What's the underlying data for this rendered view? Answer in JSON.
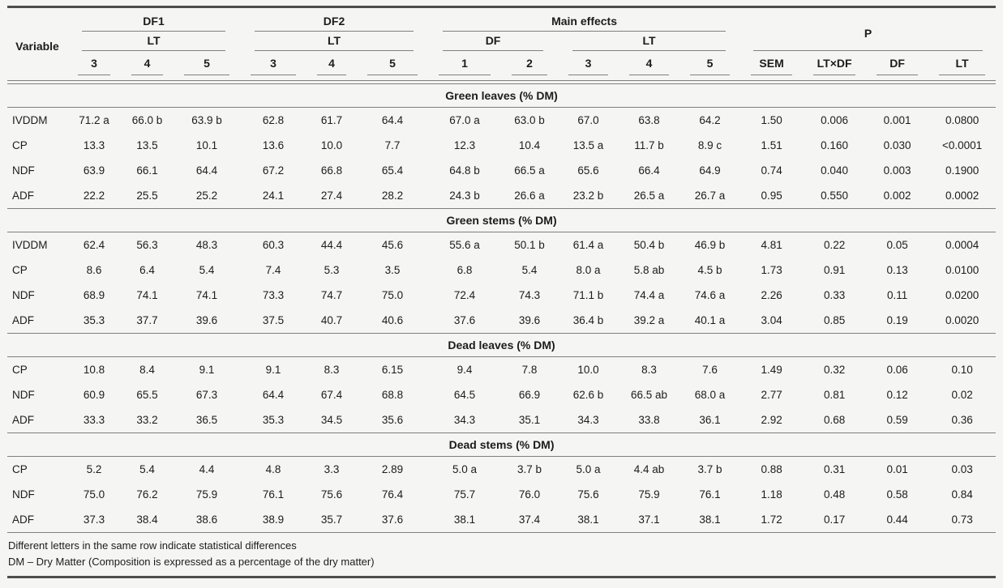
{
  "table": {
    "header": {
      "variable": "Variable",
      "group_df1": {
        "label": "DF1",
        "sub": "LT",
        "cols": [
          "3",
          "4",
          "5"
        ]
      },
      "group_df2": {
        "label": "DF2",
        "sub": "LT",
        "cols": [
          "3",
          "4",
          "5"
        ]
      },
      "group_main": {
        "label": "Main effects",
        "sub_df": {
          "label": "DF",
          "cols": [
            "1",
            "2"
          ]
        },
        "sub_lt": {
          "label": "LT",
          "cols": [
            "3",
            "4",
            "5"
          ]
        }
      },
      "group_p": {
        "label": "P",
        "cols": [
          "SEM",
          "LT×DF",
          "DF",
          "LT"
        ]
      }
    },
    "sections": [
      {
        "title": "Green leaves (% DM)",
        "rows": [
          {
            "variable": "IVDDM",
            "values": [
              "71.2 a",
              "66.0 b",
              "63.9 b",
              "62.8",
              "61.7",
              "64.4",
              "67.0 a",
              "63.0 b",
              "67.0",
              "63.8",
              "64.2",
              "1.50",
              "0.006",
              "0.001",
              "0.0800"
            ]
          },
          {
            "variable": "CP",
            "values": [
              "13.3",
              "13.5",
              "10.1",
              "13.6",
              "10.0",
              "7.7",
              "12.3",
              "10.4",
              "13.5 a",
              "11.7 b",
              "8.9 c",
              "1.51",
              "0.160",
              "0.030",
              "<0.0001"
            ]
          },
          {
            "variable": "NDF",
            "values": [
              "63.9",
              "66.1",
              "64.4",
              "67.2",
              "66.8",
              "65.4",
              "64.8 b",
              "66.5 a",
              "65.6",
              "66.4",
              "64.9",
              "0.74",
              "0.040",
              "0.003",
              "0.1900"
            ]
          },
          {
            "variable": "ADF",
            "values": [
              "22.2",
              "25.5",
              "25.2",
              "24.1",
              "27.4",
              "28.2",
              "24.3 b",
              "26.6 a",
              "23.2 b",
              "26.5 a",
              "26.7 a",
              "0.95",
              "0.550",
              "0.002",
              "0.0002"
            ]
          }
        ]
      },
      {
        "title": "Green stems (% DM)",
        "rows": [
          {
            "variable": "IVDDM",
            "values": [
              "62.4",
              "56.3",
              "48.3",
              "60.3",
              "44.4",
              "45.6",
              "55.6 a",
              "50.1 b",
              "61.4 a",
              "50.4 b",
              "46.9 b",
              "4.81",
              "0.22",
              "0.05",
              "0.0004"
            ]
          },
          {
            "variable": "CP",
            "values": [
              "8.6",
              "6.4",
              "5.4",
              "7.4",
              "5.3",
              "3.5",
              "6.8",
              "5.4",
              "8.0 a",
              "5.8 ab",
              "4.5 b",
              "1.73",
              "0.91",
              "0.13",
              "0.0100"
            ]
          },
          {
            "variable": "NDF",
            "values": [
              "68.9",
              "74.1",
              "74.1",
              "73.3",
              "74.7",
              "75.0",
              "72.4",
              "74.3",
              "71.1 b",
              "74.4 a",
              "74.6 a",
              "2.26",
              "0.33",
              "0.11",
              "0.0200"
            ]
          },
          {
            "variable": "ADF",
            "values": [
              "35.3",
              "37.7",
              "39.6",
              "37.5",
              "40.7",
              "40.6",
              "37.6",
              "39.6",
              "36.4 b",
              "39.2 a",
              "40.1 a",
              "3.04",
              "0.85",
              "0.19",
              "0.0020"
            ]
          }
        ]
      },
      {
        "title": "Dead leaves (% DM)",
        "rows": [
          {
            "variable": "CP",
            "values": [
              "10.8",
              "8.4",
              "9.1",
              "9.1",
              "8.3",
              "6.15",
              "9.4",
              "7.8",
              "10.0",
              "8.3",
              "7.6",
              "1.49",
              "0.32",
              "0.06",
              "0.10"
            ]
          },
          {
            "variable": "NDF",
            "values": [
              "60.9",
              "65.5",
              "67.3",
              "64.4",
              "67.4",
              "68.8",
              "64.5",
              "66.9",
              "62.6 b",
              "66.5 ab",
              "68.0 a",
              "2.77",
              "0.81",
              "0.12",
              "0.02"
            ]
          },
          {
            "variable": "ADF",
            "values": [
              "33.3",
              "33.2",
              "36.5",
              "35.3",
              "34.5",
              "35.6",
              "34.3",
              "35.1",
              "34.3",
              "33.8",
              "36.1",
              "2.92",
              "0.68",
              "0.59",
              "0.36"
            ]
          }
        ]
      },
      {
        "title": "Dead stems (% DM)",
        "rows": [
          {
            "variable": "CP",
            "values": [
              "5.2",
              "5.4",
              "4.4",
              "4.8",
              "3.3",
              "2.89",
              "5.0 a",
              "3.7 b",
              "5.0 a",
              "4.4 ab",
              "3.7 b",
              "0.88",
              "0.31",
              "0.01",
              "0.03"
            ]
          },
          {
            "variable": "NDF",
            "values": [
              "75.0",
              "76.2",
              "75.9",
              "76.1",
              "75.6",
              "76.4",
              "75.7",
              "76.0",
              "75.6",
              "75.9",
              "76.1",
              "1.18",
              "0.48",
              "0.58",
              "0.84"
            ]
          },
          {
            "variable": "ADF",
            "values": [
              "37.3",
              "38.4",
              "38.6",
              "38.9",
              "35.7",
              "37.6",
              "38.1",
              "37.4",
              "38.1",
              "37.1",
              "38.1",
              "1.72",
              "0.17",
              "0.44",
              "0.73"
            ]
          }
        ]
      }
    ],
    "footnotes": [
      "Different letters in the same row indicate statistical differences",
      "DM – Dry Matter (Composition is expressed as a percentage of the dry matter)"
    ]
  }
}
